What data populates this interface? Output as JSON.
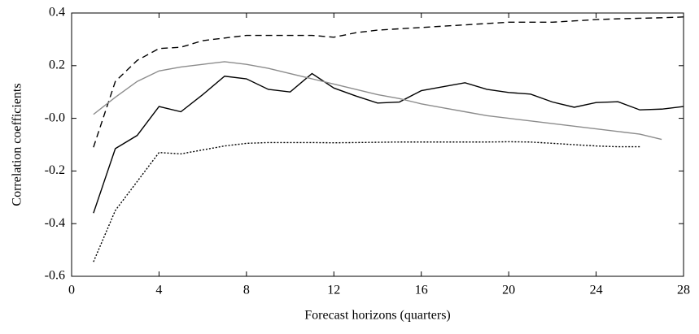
{
  "chart_data": {
    "type": "line",
    "xlabel": "Forecast horizons (quarters)",
    "ylabel": "Correlation coefficients",
    "x": [
      1,
      2,
      3,
      4,
      5,
      6,
      7,
      8,
      9,
      10,
      11,
      12,
      13,
      14,
      15,
      16,
      17,
      18,
      19,
      20,
      21,
      22,
      23,
      24,
      25,
      26,
      27,
      28
    ],
    "series": [
      {
        "color": "#000000",
        "style": "solid",
        "values": [
          -0.36,
          -0.115,
          -0.065,
          0.045,
          0.025,
          0.09,
          0.16,
          0.15,
          0.11,
          0.1,
          0.17,
          0.115,
          0.085,
          0.058,
          0.062,
          0.105,
          0.12,
          0.135,
          0.11,
          0.098,
          0.092,
          0.062,
          0.042,
          0.06,
          0.063,
          0.032,
          0.035,
          0.045
        ]
      },
      {
        "color": "#000000",
        "style": "dashed",
        "values": [
          -0.11,
          0.14,
          0.22,
          0.265,
          0.27,
          0.295,
          0.305,
          0.315,
          0.315,
          0.315,
          0.315,
          0.308,
          0.325,
          0.335,
          0.34,
          0.345,
          0.35,
          0.355,
          0.36,
          0.365,
          0.365,
          0.365,
          0.37,
          0.375,
          0.378,
          0.38,
          0.382,
          0.385
        ]
      },
      {
        "color": "#8c8c8c",
        "style": "solid",
        "values": [
          0.015,
          0.08,
          0.14,
          0.18,
          0.195,
          0.205,
          0.215,
          0.205,
          0.19,
          0.17,
          0.15,
          0.13,
          0.11,
          0.09,
          0.075,
          0.055,
          0.04,
          0.025,
          0.01,
          0.0,
          -0.01,
          -0.02,
          -0.03,
          -0.04,
          -0.05,
          -0.06,
          -0.08,
          null
        ]
      },
      {
        "color": "#000000",
        "style": "dotted",
        "values": [
          -0.545,
          -0.35,
          -0.24,
          -0.13,
          -0.135,
          -0.12,
          -0.105,
          -0.095,
          -0.092,
          -0.092,
          -0.092,
          -0.093,
          -0.092,
          -0.091,
          -0.09,
          -0.09,
          -0.09,
          -0.09,
          -0.09,
          -0.089,
          -0.09,
          -0.095,
          -0.1,
          -0.105,
          -0.108,
          -0.108,
          null,
          null
        ]
      }
    ],
    "xlim": [
      0,
      28
    ],
    "xticks": [
      0,
      4,
      8,
      12,
      16,
      20,
      24,
      28
    ],
    "ylim": [
      -0.6,
      0.4
    ],
    "yticks": [
      -0.6,
      -0.4,
      -0.2,
      {
        "value": 0,
        "label": "-0.0"
      },
      0.2,
      0.4
    ]
  }
}
